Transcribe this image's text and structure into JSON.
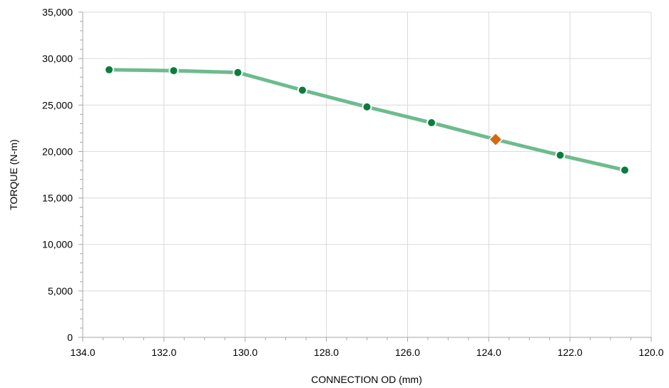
{
  "chart_data": {
    "type": "line",
    "title": "",
    "xlabel": "CONNECTION OD (mm)",
    "ylabel": "TORQUE (N-m)",
    "xlim": [
      134.0,
      120.0
    ],
    "ylim": [
      0,
      35000
    ],
    "x_reversed": true,
    "x_tick_values": [
      134.0,
      132.0,
      130.0,
      128.0,
      126.0,
      124.0,
      122.0,
      120.0
    ],
    "x_tick_labels": [
      "134.0",
      "132.0",
      "130.0",
      "128.0",
      "126.0",
      "124.0",
      "122.0",
      "120.0"
    ],
    "y_tick_values": [
      0,
      5000,
      10000,
      15000,
      20000,
      25000,
      30000,
      35000
    ],
    "y_tick_labels": [
      "0",
      "5,000",
      "10,000",
      "15,000",
      "20,000",
      "25,000",
      "30,000",
      "35,000"
    ],
    "grid": true,
    "legend": "none",
    "series": [
      {
        "line_color": "#6dbb8e",
        "marker_color": "#0a7d3e",
        "x": [
          133.35,
          131.76,
          130.18,
          128.59,
          127.0,
          125.41,
          123.83,
          122.24,
          120.65
        ],
        "y": [
          28800,
          28700,
          28500,
          26600,
          24800,
          23100,
          21300,
          19600,
          18000
        ]
      }
    ],
    "highlight_point": {
      "x": 123.83,
      "y": 21300,
      "marker": "diamond",
      "color": "#d46a0a"
    }
  }
}
